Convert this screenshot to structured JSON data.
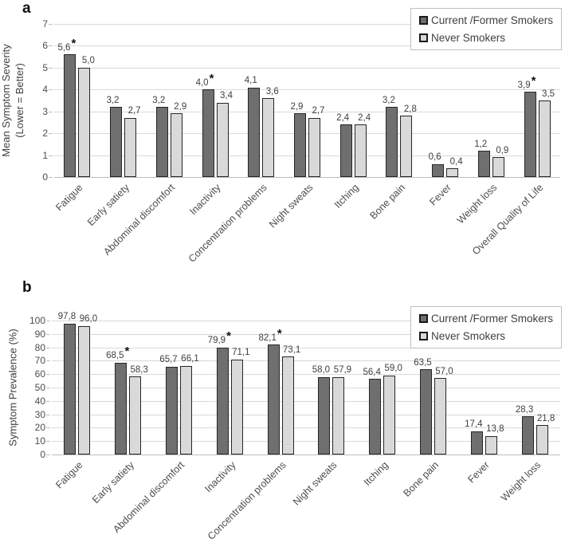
{
  "figure": {
    "significance_marker": "*"
  },
  "colors": {
    "smokers_fill": "#6f6f6f",
    "never_fill": "#d9d9d9",
    "bar_border": "#262626",
    "gridline": "#d9d9d9",
    "axis_line": "#bfbfbf",
    "label_text": "#3f3f3f"
  },
  "chart_data": [
    {
      "type": "bar",
      "panel": "a",
      "title": "",
      "ylabel": "Mean Symptom Severity\n(Lower = Better)",
      "xlabel": "",
      "ylim": [
        0,
        7
      ],
      "yticks": [
        0,
        1,
        2,
        3,
        4,
        5,
        6,
        7
      ],
      "grid": true,
      "legend_position": "top-right",
      "categories": [
        "Fatigue",
        "Early satiety",
        "Abdominal discomfort",
        "Inactivity",
        "Concentration problems",
        "Night sweats",
        "Itching",
        "Bone pain",
        "Fever",
        "Weight loss",
        "Overall Quality of Life"
      ],
      "series": [
        {
          "name": "Current /Former Smokers",
          "values": [
            5.6,
            3.2,
            3.2,
            4.0,
            4.1,
            2.9,
            2.4,
            3.2,
            0.6,
            1.2,
            3.9
          ],
          "labels": [
            "5,6",
            "3,2",
            "3,2",
            "4,0",
            "4,1",
            "2,9",
            "2,4",
            "3,2",
            "0,6",
            "1,2",
            "3,9"
          ],
          "asterisks": [
            true,
            false,
            false,
            true,
            false,
            false,
            false,
            false,
            false,
            false,
            true
          ]
        },
        {
          "name": "Never Smokers",
          "values": [
            5.0,
            2.7,
            2.9,
            3.4,
            3.6,
            2.7,
            2.4,
            2.8,
            0.4,
            0.9,
            3.5
          ],
          "labels": [
            "5,0",
            "2,7",
            "2,9",
            "3,4",
            "3,6",
            "2,7",
            "2,4",
            "2,8",
            "0,4",
            "0,9",
            "3,5"
          ],
          "asterisks": [
            false,
            false,
            false,
            false,
            false,
            false,
            false,
            false,
            false,
            false,
            false
          ]
        }
      ]
    },
    {
      "type": "bar",
      "panel": "b",
      "title": "",
      "ylabel": "Symptom Prevalence (%)",
      "xlabel": "",
      "ylim": [
        0,
        100
      ],
      "yticks": [
        0,
        10,
        20,
        30,
        40,
        50,
        60,
        70,
        80,
        90,
        100
      ],
      "grid": true,
      "legend_position": "top-right",
      "categories": [
        "Fatigue",
        "Early satiety",
        "Abdominal discomfort",
        "Inactivity",
        "Concentration problems",
        "Night sweats",
        "Itching",
        "Bone pain",
        "Fever",
        "Weight loss"
      ],
      "series": [
        {
          "name": "Current /Former Smokers",
          "values": [
            97.8,
            68.5,
            65.7,
            79.9,
            82.1,
            58.0,
            56.4,
            63.5,
            17.4,
            28.3
          ],
          "labels": [
            "97,8",
            "68,5",
            "65,7",
            "79,9",
            "82,1",
            "58,0",
            "56,4",
            "63,5",
            "17,4",
            "28,3"
          ],
          "asterisks": [
            false,
            true,
            false,
            true,
            true,
            false,
            false,
            false,
            false,
            false
          ]
        },
        {
          "name": "Never Smokers",
          "values": [
            96.0,
            58.3,
            66.1,
            71.1,
            73.1,
            57.9,
            59.0,
            57.0,
            13.8,
            21.8
          ],
          "labels": [
            "96,0",
            "58,3",
            "66,1",
            "71,1",
            "73,1",
            "57,9",
            "59,0",
            "57,0",
            "13,8",
            "21,8"
          ],
          "asterisks": [
            false,
            false,
            false,
            false,
            false,
            false,
            false,
            false,
            false,
            false
          ]
        }
      ]
    }
  ]
}
